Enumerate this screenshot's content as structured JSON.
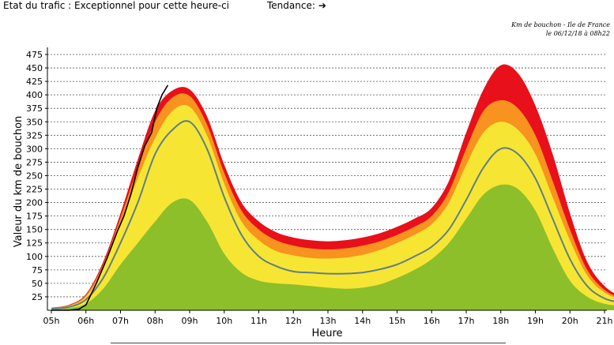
{
  "header": {
    "status_text": "Etat du trafic : Exceptionnel pour cette heure-ci",
    "trend_label": "Tendance:",
    "trend_arrow": "➔"
  },
  "info": {
    "line1": "Km de bouchon - Ile de France",
    "line2": "le 06/12/18 à 08h22"
  },
  "colors": {
    "red": "#e8101a",
    "orange": "#f7931e",
    "yellow": "#f7e534",
    "green": "#8dbf2a",
    "average": "#5f7f86",
    "today": "#000000",
    "grid": "#555555"
  },
  "chart_data": {
    "type": "area",
    "title": "",
    "xlabel": "Heure",
    "ylabel": "Valeur du  km de bouchon",
    "xlim": [
      5.0,
      22.0
    ],
    "ylim": [
      0,
      475
    ],
    "x_ticks": [
      "05h",
      "06h",
      "07h",
      "08h",
      "09h",
      "10h",
      "11h",
      "12h",
      "13h",
      "14h",
      "15h",
      "16h",
      "17h",
      "18h",
      "19h",
      "20h",
      "21h"
    ],
    "y_ticks": [
      25,
      50,
      75,
      100,
      125,
      150,
      175,
      200,
      225,
      250,
      275,
      300,
      325,
      350,
      375,
      400,
      425,
      450,
      475
    ],
    "grid": "horizontal dashed",
    "x": [
      5.0,
      5.5,
      6.0,
      6.5,
      7.0,
      7.5,
      8.0,
      8.5,
      9.0,
      9.5,
      10.0,
      10.5,
      11.0,
      11.5,
      12.0,
      12.5,
      13.0,
      13.5,
      14.0,
      14.5,
      15.0,
      15.5,
      16.0,
      16.5,
      17.0,
      17.5,
      18.0,
      18.5,
      19.0,
      19.5,
      20.0,
      20.5,
      21.0,
      21.5,
      21.9
    ],
    "series": [
      {
        "color_key": "red",
        "values": [
          5,
          10,
          30,
          90,
          180,
          280,
          370,
          408,
          410,
          360,
          270,
          200,
          165,
          145,
          135,
          130,
          128,
          130,
          135,
          143,
          155,
          170,
          190,
          240,
          330,
          410,
          455,
          440,
          380,
          290,
          180,
          90,
          45,
          25,
          20
        ]
      },
      {
        "color_key": "orange",
        "values": [
          5,
          9,
          28,
          85,
          172,
          265,
          350,
          395,
          398,
          345,
          255,
          185,
          150,
          130,
          120,
          115,
          113,
          115,
          120,
          128,
          140,
          155,
          175,
          220,
          300,
          370,
          390,
          375,
          325,
          240,
          150,
          75,
          38,
          22,
          18
        ]
      },
      {
        "color_key": "yellow",
        "values": [
          4,
          8,
          25,
          78,
          160,
          245,
          320,
          370,
          378,
          325,
          235,
          165,
          130,
          110,
          102,
          97,
          96,
          98,
          103,
          112,
          125,
          140,
          160,
          200,
          270,
          330,
          350,
          335,
          290,
          210,
          130,
          65,
          33,
          20,
          16
        ]
      },
      {
        "color_key": "green",
        "values": [
          2,
          4,
          12,
          40,
          85,
          125,
          165,
          200,
          205,
          165,
          105,
          70,
          55,
          50,
          48,
          45,
          42,
          40,
          42,
          48,
          60,
          75,
          95,
          125,
          170,
          215,
          233,
          225,
          185,
          115,
          55,
          25,
          12,
          8,
          6
        ]
      },
      {
        "color_key": "average",
        "values": [
          3,
          6,
          20,
          60,
          125,
          200,
          290,
          335,
          350,
          300,
          210,
          140,
          100,
          82,
          72,
          70,
          68,
          68,
          70,
          76,
          85,
          100,
          118,
          150,
          205,
          265,
          300,
          290,
          245,
          170,
          95,
          45,
          22,
          14,
          12
        ]
      },
      {
        "color_key": "today",
        "x": [
          5.0,
          5.5,
          5.8,
          6.0,
          6.3,
          6.6,
          6.9,
          7.1,
          7.3,
          7.5,
          7.7,
          7.9,
          8.05,
          8.2,
          8.37
        ],
        "values": [
          0,
          0,
          2,
          10,
          50,
          95,
          145,
          175,
          215,
          265,
          305,
          330,
          375,
          400,
          418
        ]
      }
    ]
  }
}
